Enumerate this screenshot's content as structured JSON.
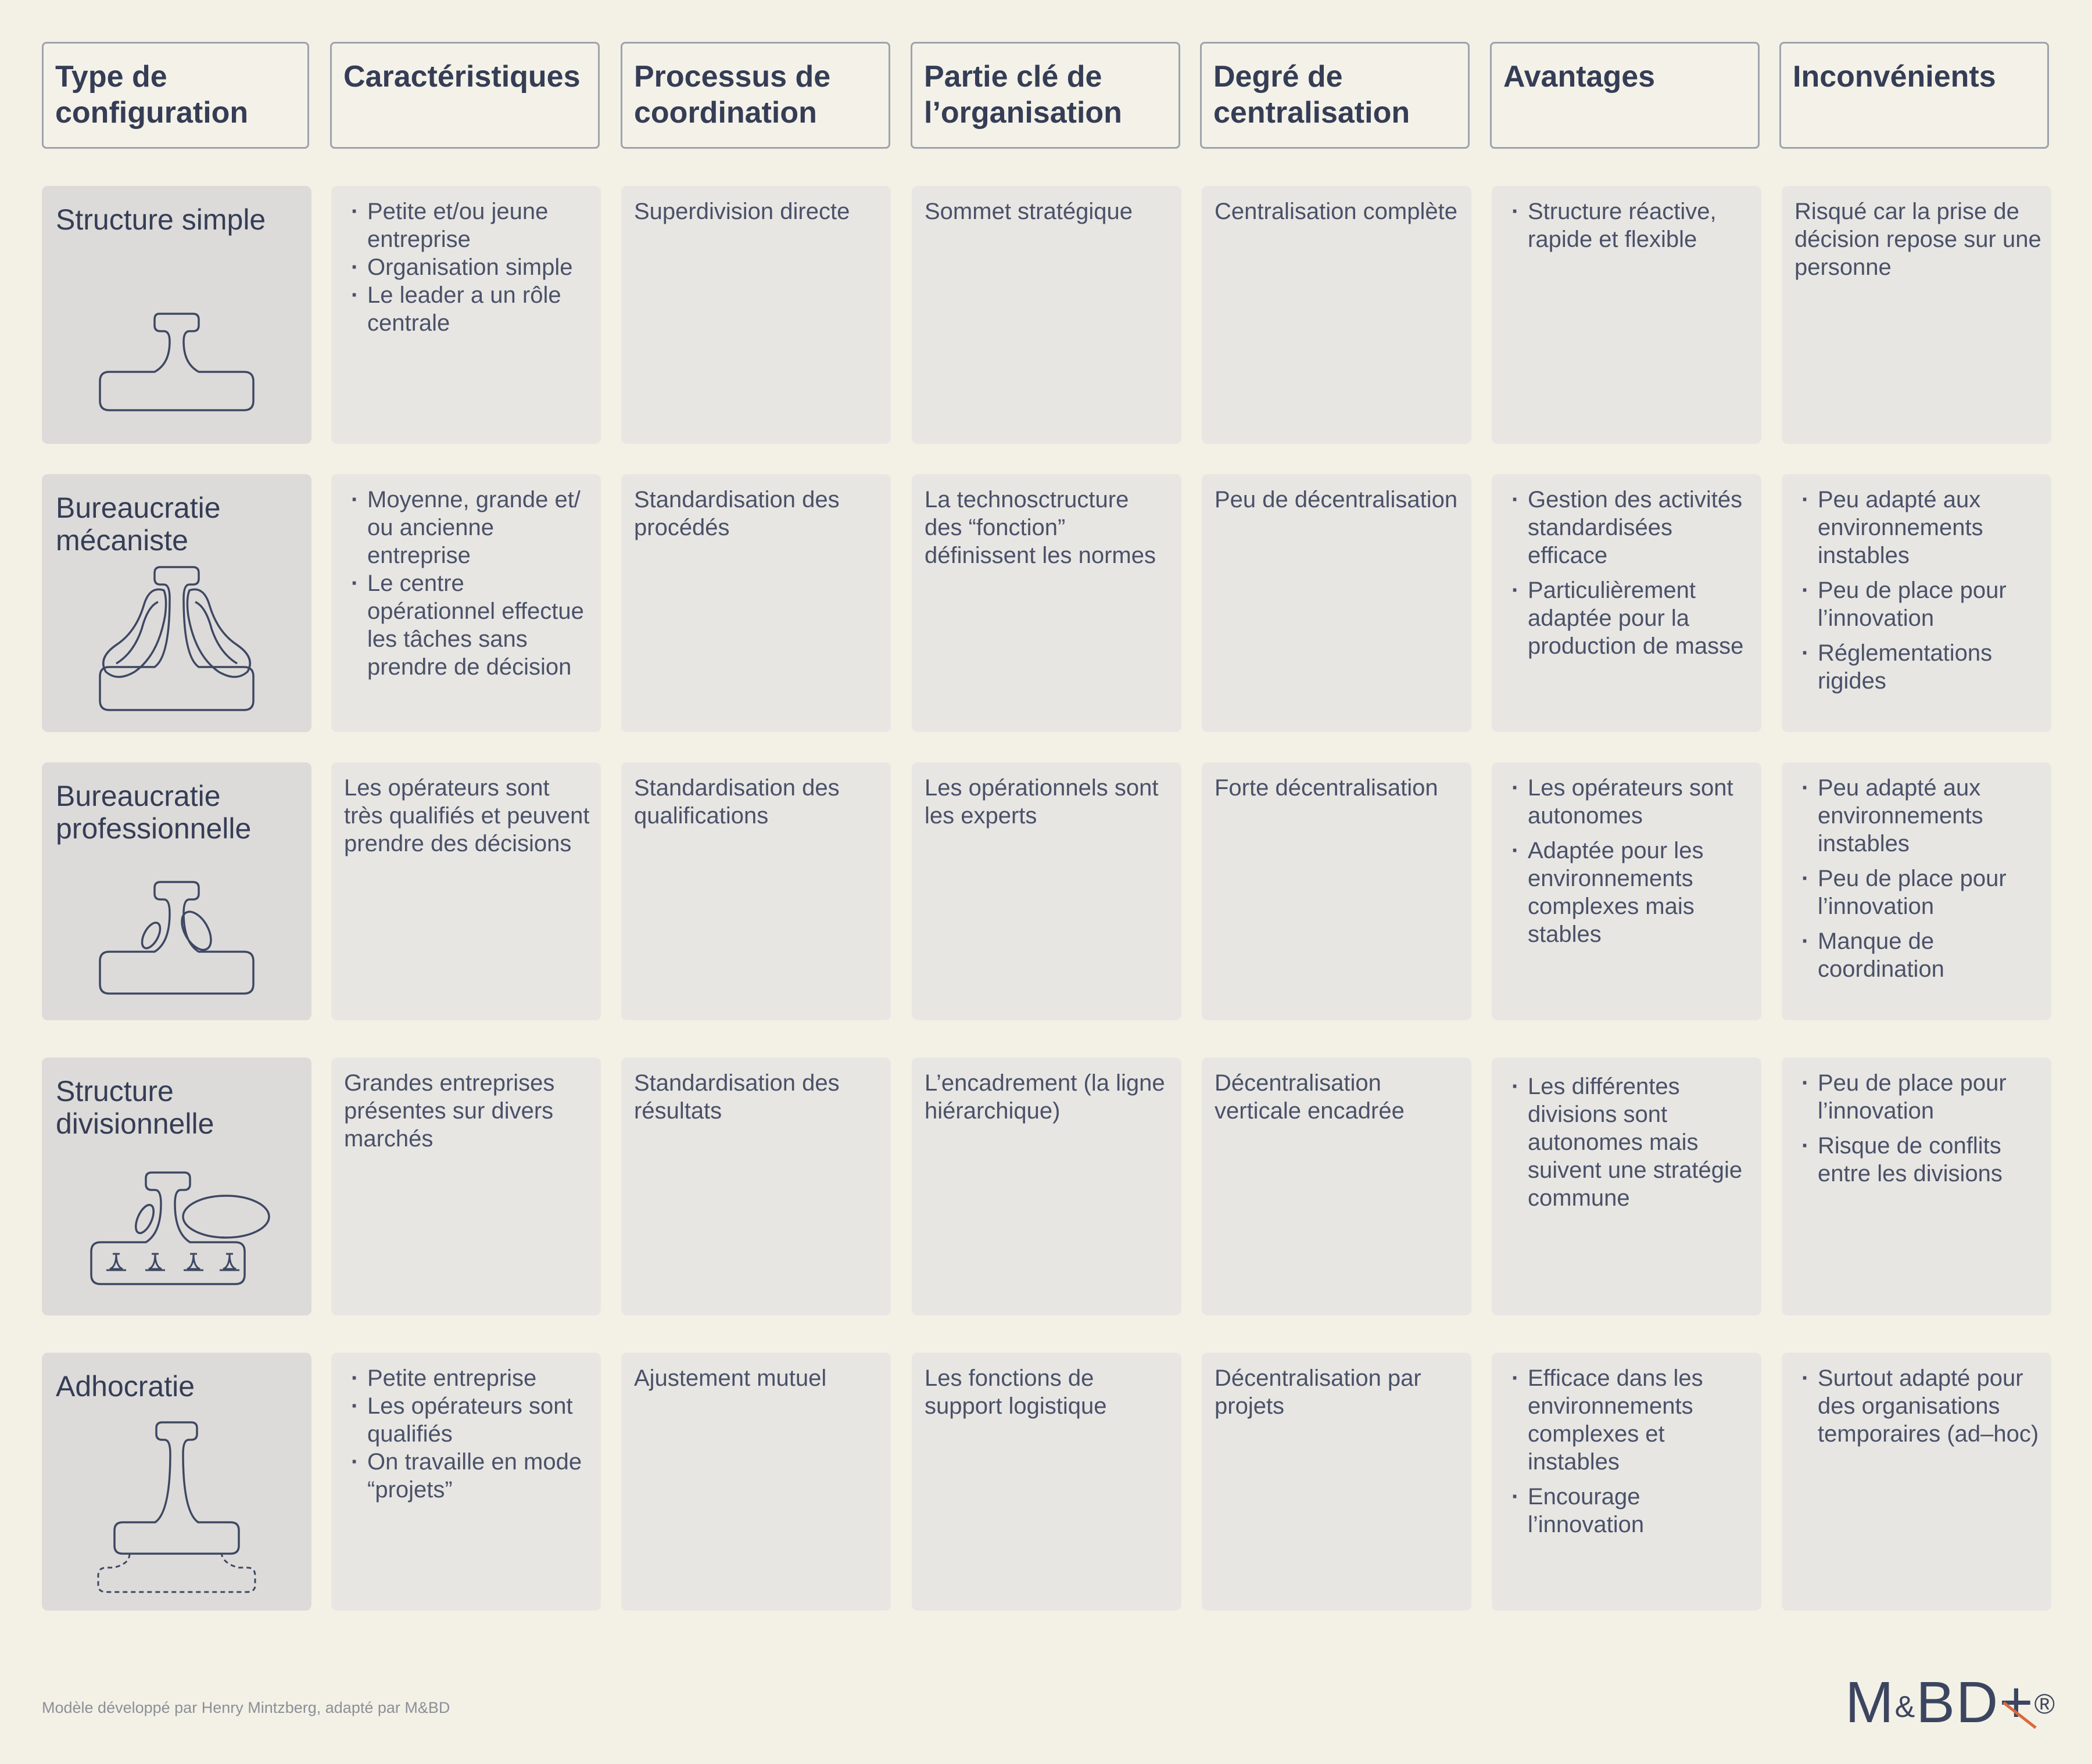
{
  "headers": [
    "Type de configuration",
    "Caractéristiques",
    "Processus de coordination",
    "Partie clé de l’organisation",
    "Degré de centralisation",
    "Avantages",
    "Inconvénients"
  ],
  "rows": [
    {
      "type": "Structure simple",
      "icon": "structure-simple-icon",
      "caracteristiques": [
        "Petite et/ou jeune entreprise",
        "Organisation simple",
        "Le leader a un rôle centrale"
      ],
      "coordination": "Superdivision directe",
      "partie_cle": "Sommet stratégique",
      "centralisation": "Centralisation complète",
      "avantages": [
        "Structure réactive, rapide et flexible"
      ],
      "inconvenients": "Risqué car la prise de décision repose sur une personne"
    },
    {
      "type": "Bureaucratie mécaniste",
      "icon": "bureaucratie-mecaniste-icon",
      "caracteristiques": [
        "Moyenne, grande et/ ou ancienne entreprise",
        "Le centre opérationnel effectue les tâches sans prendre de décision"
      ],
      "coordination": "Standardisation des procédés",
      "partie_cle": "La technosctructure des “fonction” définissent les normes",
      "centralisation": "Peu de décentralisation",
      "avantages": [
        "Gestion des activités standardisées efficace",
        "Particulièrement adaptée pour la production de masse"
      ],
      "inconvenients": [
        "Peu adapté aux environnements instables",
        "Peu de place pour l’innovation",
        "Réglementations rigides"
      ]
    },
    {
      "type": "Bureaucratie professionnelle",
      "icon": "bureaucratie-professionnelle-icon",
      "caracteristiques": "Les opérateurs sont très qualifiés et peuvent prendre des décisions",
      "coordination": "Standardisation des qualifications",
      "partie_cle": "Les opérationnels sont les experts",
      "centralisation": "Forte décentralisation",
      "avantages": [
        "Les opérateurs sont autonomes",
        "Adaptée pour les environnements complexes mais stables"
      ],
      "inconvenients": [
        "Peu adapté aux environnements instables",
        "Peu de place pour l’innovation",
        "Manque de coordination"
      ]
    },
    {
      "type": "Structure divisionnelle",
      "icon": "structure-divisionnelle-icon",
      "caracteristiques": "Grandes entreprises présentes sur divers marchés",
      "coordination": "Standardisation des résultats",
      "partie_cle": "L’encadrement (la ligne hiérarchique)",
      "centralisation": "Décentralisation verticale encadrée",
      "avantages": [
        "Les différentes divisions sont autonomes mais suivent une stratégie commune"
      ],
      "inconvenients": [
        "Peu de place pour l’innovation",
        "Risque de conflits entre les divisions"
      ]
    },
    {
      "type": "Adhocratie",
      "icon": "adhocratie-icon",
      "caracteristiques": [
        "Petite entreprise",
        "Les opérateurs sont qualifiés",
        "On travaille en mode “projets”"
      ],
      "coordination": "Ajustement mutuel",
      "partie_cle": "Les fonctions de support logistique",
      "centralisation": "Décentralisation par projets",
      "avantages": [
        "Efficace dans les environnements complexes et instables",
        "Encourage l’innovation"
      ],
      "inconvenients": [
        "Surtout adapté pour des organisations temporaires (ad–hoc)"
      ]
    }
  ],
  "footer": "Modèle développé par Henry Mintzberg, adapté par M&BD",
  "logo": {
    "m": "M",
    "amp": "&",
    "bd": "BD",
    "plus": "+",
    "reg": "®"
  },
  "colors": {
    "background": "#f3f1e6",
    "cell": "#e7e6e3",
    "first_cell": "#dcdbd9",
    "text": "#353d56",
    "accent": "#d96a3c"
  }
}
